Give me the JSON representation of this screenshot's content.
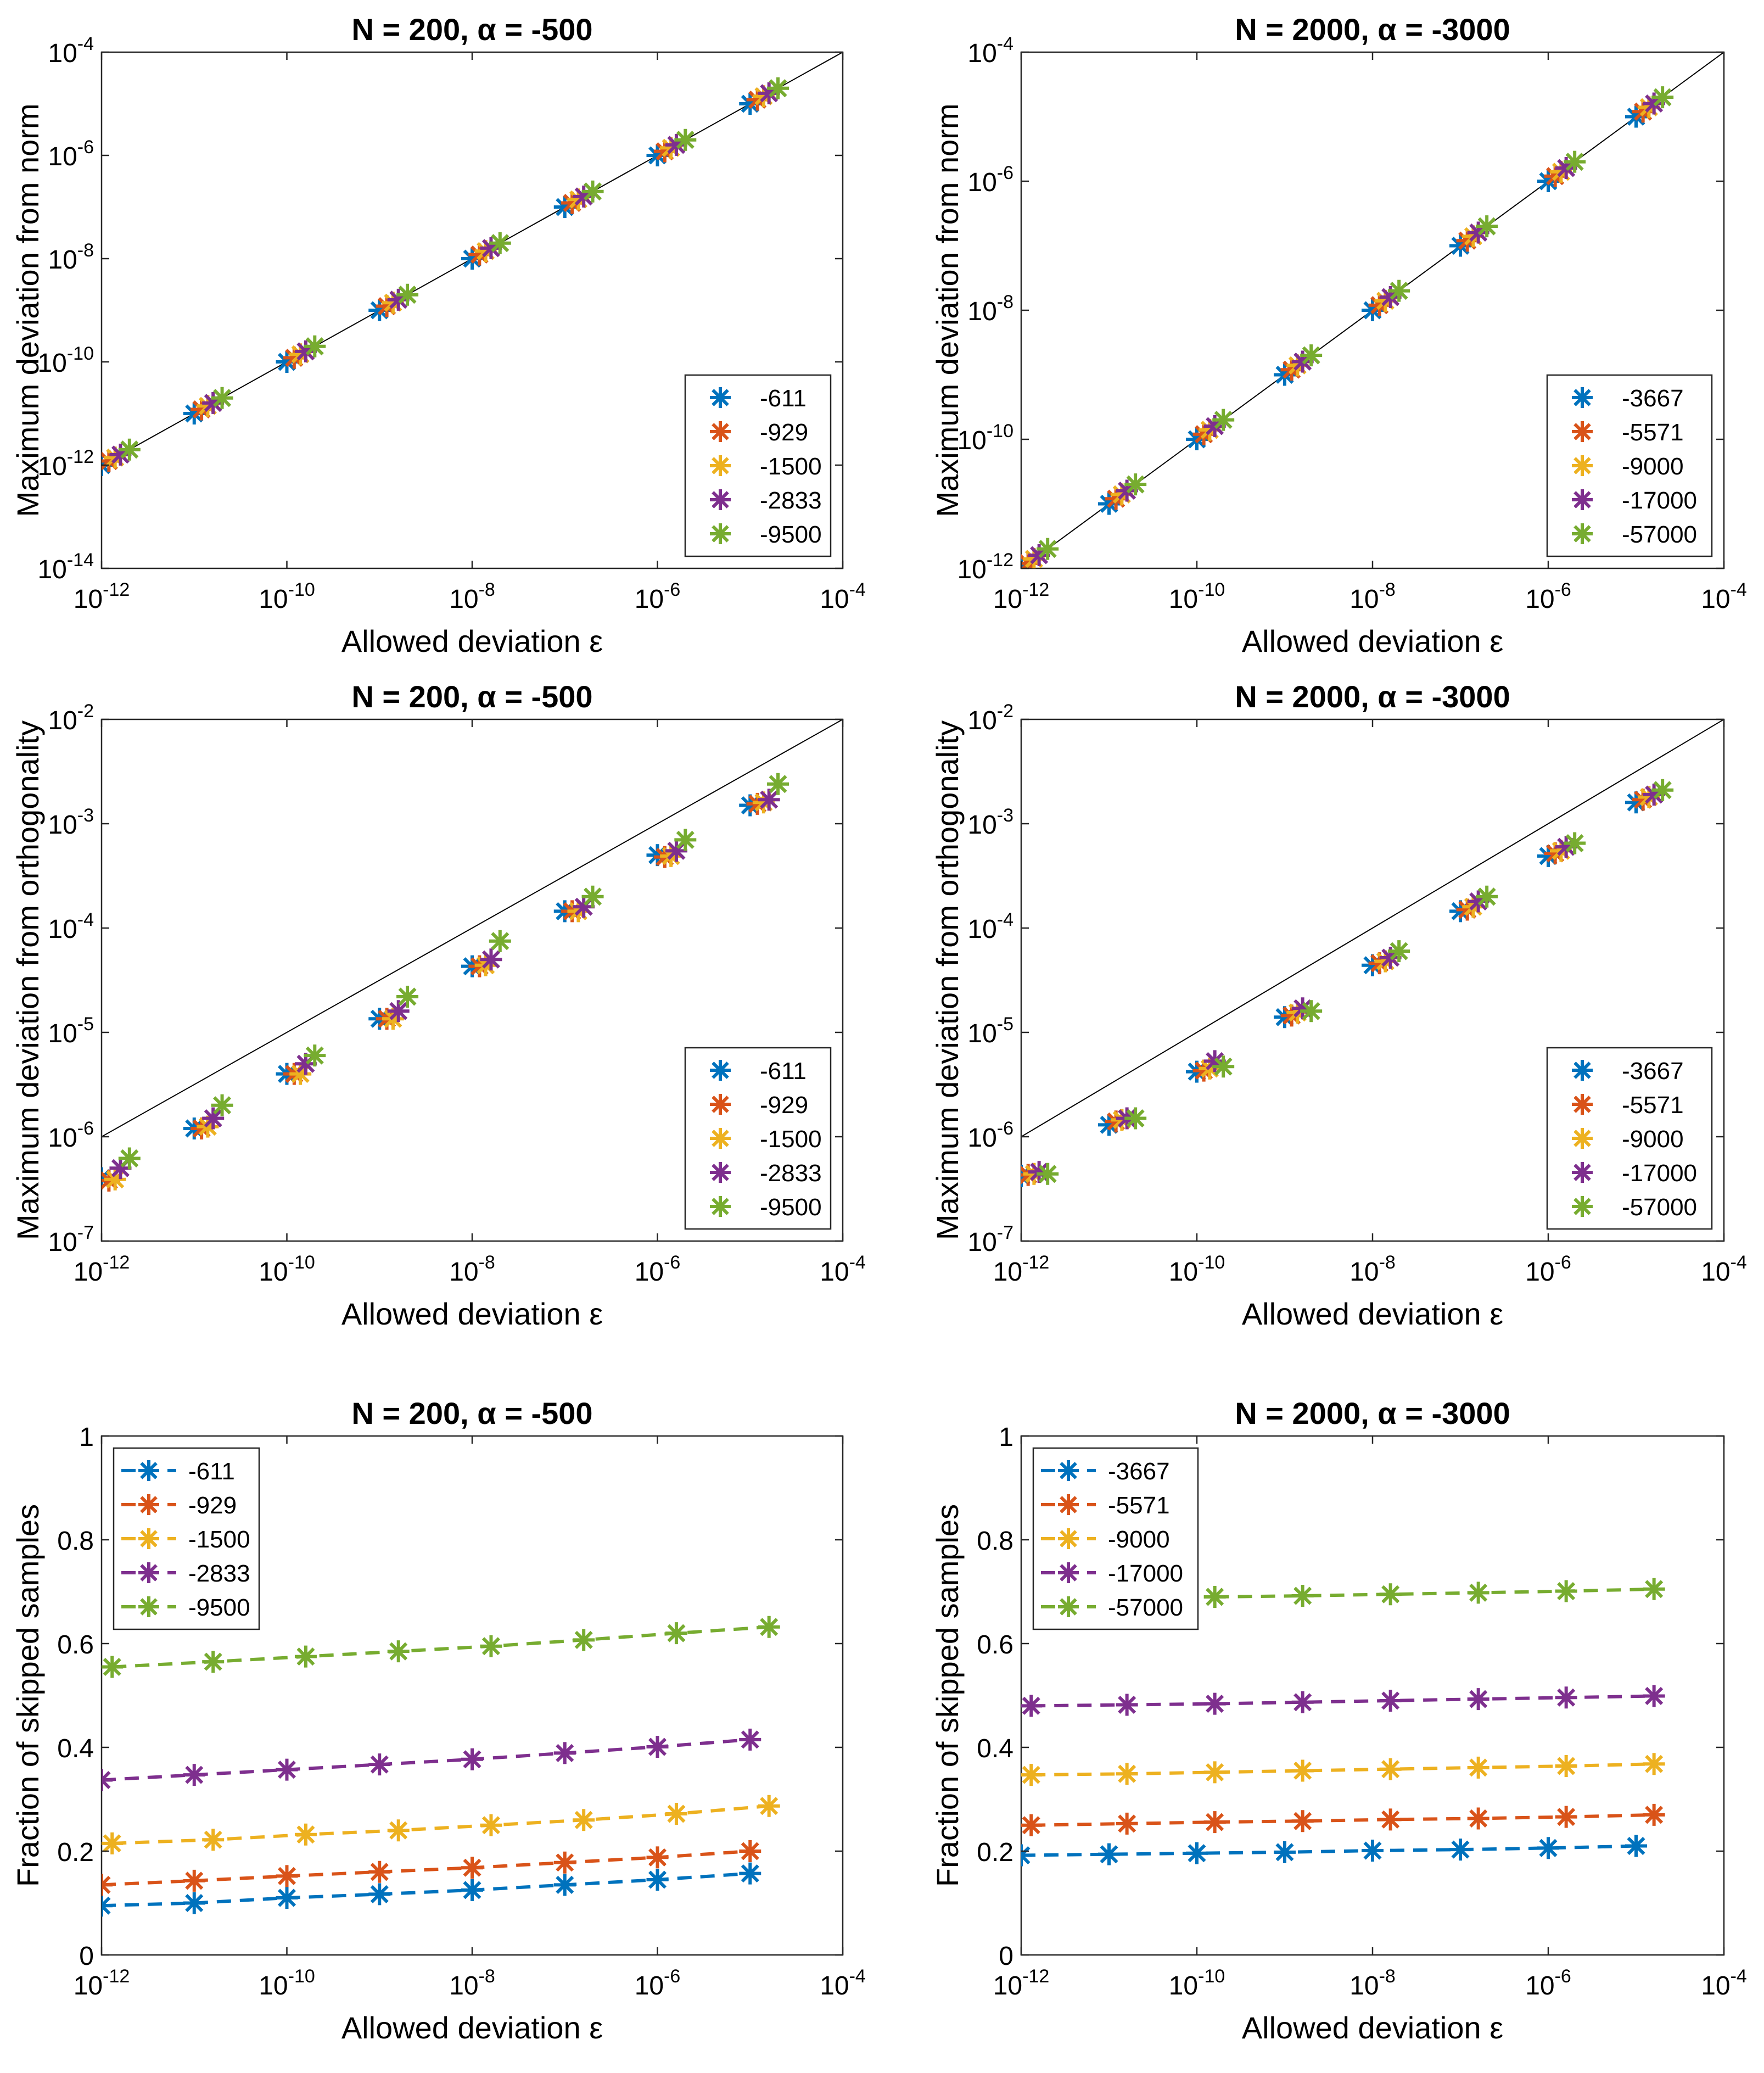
{
  "figure": {
    "colors": [
      "#0072BD",
      "#D95319",
      "#EDB120",
      "#7E2F8E",
      "#77AC30"
    ]
  },
  "chart_data": [
    {
      "id": "p1",
      "type": "scatter",
      "title": "N = 200, α = -500",
      "xlabel": "Allowed deviation ε",
      "ylabel": "Maximum deviation from norm",
      "xscale": "log",
      "yscale": "log",
      "xlim": [
        1e-12,
        0.0001
      ],
      "ylim": [
        1e-14,
        0.0001
      ],
      "xtick_labels": [
        "10-12",
        "10-10",
        "10-8",
        "10-6",
        "10-4"
      ],
      "ytick_labels": [
        "10-14",
        "10-12",
        "10-10",
        "10-8",
        "10-6",
        "10-4"
      ],
      "reference_line": "y = x",
      "legend_loc": "bottom-right",
      "x": [
        1e-12,
        1e-11,
        1e-10,
        1e-09,
        1e-08,
        1e-07,
        1e-06,
        1e-05
      ],
      "series": [
        {
          "name": "-611",
          "values": [
            1e-12,
            1e-11,
            1e-10,
            1e-09,
            1e-08,
            1e-07,
            1e-06,
            1e-05
          ]
        },
        {
          "name": "-929",
          "values": [
            1.2e-12,
            1.2e-11,
            1.2e-10,
            1.2e-09,
            1.2e-08,
            1.2e-07,
            1.2e-06,
            1.2e-05
          ]
        },
        {
          "name": "-1500",
          "values": [
            1.4e-12,
            1.4e-11,
            1.4e-10,
            1.4e-09,
            1.4e-08,
            1.4e-07,
            1.4e-06,
            1.4e-05
          ]
        },
        {
          "name": "-2833",
          "values": [
            1.6e-12,
            1.6e-11,
            1.6e-10,
            1.6e-09,
            1.6e-08,
            1.6e-07,
            1.6e-06,
            1.6e-05
          ]
        },
        {
          "name": "-9500",
          "values": [
            2e-12,
            2e-11,
            2e-10,
            2e-09,
            2e-08,
            2e-07,
            2e-06,
            2e-05
          ]
        }
      ]
    },
    {
      "id": "p2",
      "type": "scatter",
      "title": "N = 2000, α = -3000",
      "xlabel": "Allowed deviation ε",
      "ylabel": "Maximum deviation from norm",
      "xscale": "log",
      "yscale": "log",
      "xlim": [
        1e-12,
        0.0001
      ],
      "ylim": [
        1e-12,
        0.0001
      ],
      "xtick_labels": [
        "10-12",
        "10-10",
        "10-8",
        "10-6",
        "10-4"
      ],
      "ytick_labels": [
        "10-12",
        "10-10",
        "10-8",
        "10-6",
        "10-4"
      ],
      "reference_line": "y = x",
      "legend_loc": "bottom-right",
      "x": [
        1e-12,
        1e-11,
        1e-10,
        1e-09,
        1e-08,
        1e-07,
        1e-06,
        1e-05
      ],
      "series": [
        {
          "name": "-3667",
          "values": [
            1e-12,
            1e-11,
            1e-10,
            1e-09,
            1e-08,
            1e-07,
            1e-06,
            1e-05
          ]
        },
        {
          "name": "-5571",
          "values": [
            1.2e-12,
            1.2e-11,
            1.2e-10,
            1.2e-09,
            1.2e-08,
            1.2e-07,
            1.2e-06,
            1.2e-05
          ]
        },
        {
          "name": "-9000",
          "values": [
            1.4e-12,
            1.4e-11,
            1.4e-10,
            1.4e-09,
            1.4e-08,
            1.4e-07,
            1.4e-06,
            1.4e-05
          ]
        },
        {
          "name": "-17000",
          "values": [
            1.6e-12,
            1.6e-11,
            1.6e-10,
            1.6e-09,
            1.6e-08,
            1.6e-07,
            1.6e-06,
            1.6e-05
          ]
        },
        {
          "name": "-57000",
          "values": [
            2e-12,
            2e-11,
            2e-10,
            2e-09,
            2e-08,
            2e-07,
            2e-06,
            2e-05
          ]
        }
      ]
    },
    {
      "id": "p3",
      "type": "scatter",
      "title": "N = 200, α = -500",
      "xlabel": "Allowed deviation ε",
      "ylabel": "Maximum deviation from orthogonality",
      "xscale": "log",
      "yscale": "log",
      "xlim": [
        1e-12,
        0.0001
      ],
      "ylim": [
        1e-07,
        0.01
      ],
      "xtick_labels": [
        "10-12",
        "10-10",
        "10-8",
        "10-6",
        "10-4"
      ],
      "ytick_labels": [
        "10-7",
        "10-6",
        "10-5",
        "10-4",
        "10-3",
        "10-2"
      ],
      "reference_line": "y = sqrt(x)",
      "legend_loc": "bottom-right",
      "x": [
        1e-12,
        1e-11,
        1e-10,
        1e-09,
        1e-08,
        1e-07,
        1e-06,
        1e-05
      ],
      "series": [
        {
          "name": "-611",
          "values": [
            4e-07,
            1.2e-06,
            4e-06,
            1.35e-05,
            4.3e-05,
            0.000145,
            0.0005,
            0.0015
          ]
        },
        {
          "name": "-929",
          "values": [
            3.8e-07,
            1.2e-06,
            4e-06,
            1.35e-05,
            4.3e-05,
            0.000145,
            0.00048,
            0.00155
          ]
        },
        {
          "name": "-1500",
          "values": [
            3.9e-07,
            1.25e-06,
            4e-06,
            1.35e-05,
            4.4e-05,
            0.000145,
            0.00049,
            0.0016
          ]
        },
        {
          "name": "-2833",
          "values": [
            5e-07,
            1.5e-06,
            5e-06,
            1.6e-05,
            5e-05,
            0.00016,
            0.00055,
            0.0017
          ]
        },
        {
          "name": "-9500",
          "values": [
            6.2e-07,
            2e-06,
            6e-06,
            2.2e-05,
            7.5e-05,
            0.0002,
            0.0007,
            0.0024
          ]
        }
      ]
    },
    {
      "id": "p4",
      "type": "scatter",
      "title": "N = 2000, α = -3000",
      "xlabel": "Allowed deviation ε",
      "ylabel": "Maximum deviation from orthogonality",
      "xscale": "log",
      "yscale": "log",
      "xlim": [
        1e-12,
        0.0001
      ],
      "ylim": [
        1e-07,
        0.01
      ],
      "xtick_labels": [
        "10-12",
        "10-10",
        "10-8",
        "10-6",
        "10-4"
      ],
      "ytick_labels": [
        "10-7",
        "10-6",
        "10-5",
        "10-4",
        "10-3",
        "10-2"
      ],
      "reference_line": "y = sqrt(x)",
      "legend_loc": "bottom-right",
      "x": [
        1e-12,
        1e-11,
        1e-10,
        1e-09,
        1e-08,
        1e-07,
        1e-06,
        1e-05
      ],
      "series": [
        {
          "name": "-3667",
          "values": [
            4.2e-07,
            1.3e-06,
            4.2e-06,
            1.4e-05,
            4.4e-05,
            0.000145,
            0.00049,
            0.0016
          ]
        },
        {
          "name": "-5571",
          "values": [
            4.3e-07,
            1.4e-06,
            4.3e-06,
            1.45e-05,
            4.6e-05,
            0.00015,
            0.00052,
            0.0017
          ]
        },
        {
          "name": "-9000",
          "values": [
            4.4e-07,
            1.45e-06,
            4.5e-06,
            1.55e-05,
            4.8e-05,
            0.00016,
            0.00055,
            0.0018
          ]
        },
        {
          "name": "-17000",
          "values": [
            4.6e-07,
            1.5e-06,
            5.3e-06,
            1.7e-05,
            5.2e-05,
            0.00018,
            0.0006,
            0.0019
          ]
        },
        {
          "name": "-57000",
          "values": [
            4.4e-07,
            1.5e-06,
            4.7e-06,
            1.6e-05,
            6e-05,
            0.0002,
            0.00065,
            0.0021
          ]
        }
      ]
    },
    {
      "id": "p5",
      "type": "line",
      "title": "N = 200, α = -500",
      "xlabel": "Allowed deviation ε",
      "ylabel": "Fraction of skipped samples",
      "xscale": "log",
      "yscale": "linear",
      "xlim": [
        1e-12,
        0.0001
      ],
      "ylim": [
        0,
        1
      ],
      "xtick_labels": [
        "10-12",
        "10-10",
        "10-8",
        "10-6",
        "10-4"
      ],
      "ytick_labels": [
        "0",
        "0.2",
        "0.4",
        "0.6",
        "0.8",
        "1"
      ],
      "legend_loc": "top-left",
      "series": [
        {
          "name": "-611",
          "x": [
            1e-12,
            1e-11,
            1e-10,
            1e-09,
            1e-08,
            1e-07,
            1e-06,
            1e-05
          ],
          "values": [
            0.095,
            0.1,
            0.11,
            0.117,
            0.125,
            0.135,
            0.145,
            0.157
          ]
        },
        {
          "name": "-929",
          "x": [
            1e-12,
            1e-11,
            1e-10,
            1e-09,
            1e-08,
            1e-07,
            1e-06,
            1e-05
          ],
          "values": [
            0.135,
            0.143,
            0.152,
            0.16,
            0.168,
            0.178,
            0.188,
            0.2
          ]
        },
        {
          "name": "-1500",
          "x": [
            1.3e-12,
            1.6e-11,
            1.6e-10,
            1.6e-09,
            1.6e-08,
            1.6e-07,
            1.6e-06,
            1.6e-05
          ],
          "values": [
            0.215,
            0.222,
            0.232,
            0.24,
            0.25,
            0.26,
            0.272,
            0.287
          ]
        },
        {
          "name": "-2833",
          "x": [
            1e-12,
            1e-11,
            1e-10,
            1e-09,
            1e-08,
            1e-07,
            1e-06,
            1e-05
          ],
          "values": [
            0.337,
            0.347,
            0.357,
            0.367,
            0.377,
            0.389,
            0.401,
            0.415
          ]
        },
        {
          "name": "-9500",
          "x": [
            1.3e-12,
            1.6e-11,
            1.6e-10,
            1.6e-09,
            1.6e-08,
            1.6e-07,
            1.6e-06,
            1.6e-05
          ],
          "values": [
            0.555,
            0.565,
            0.575,
            0.585,
            0.595,
            0.607,
            0.62,
            0.632
          ]
        }
      ]
    },
    {
      "id": "p6",
      "type": "line",
      "title": "N = 2000, α = -3000",
      "xlabel": "Allowed deviation ε",
      "ylabel": "Fraction of skipped samples",
      "xscale": "log",
      "yscale": "linear",
      "xlim": [
        1e-12,
        0.0001
      ],
      "ylim": [
        0,
        1
      ],
      "xtick_labels": [
        "10-12",
        "10-10",
        "10-8",
        "10-6",
        "10-4"
      ],
      "ytick_labels": [
        "0",
        "0.2",
        "0.4",
        "0.6",
        "0.8",
        "1"
      ],
      "legend_loc": "top-left",
      "series": [
        {
          "name": "-3667",
          "x": [
            1e-12,
            1e-11,
            1e-10,
            1e-09,
            1e-08,
            1e-07,
            1e-06,
            1e-05
          ],
          "values": [
            0.192,
            0.194,
            0.196,
            0.198,
            0.201,
            0.203,
            0.206,
            0.21
          ]
        },
        {
          "name": "-5571",
          "x": [
            1.3e-12,
            1.6e-11,
            1.6e-10,
            1.6e-09,
            1.6e-08,
            1.6e-07,
            1.6e-06,
            1.6e-05
          ],
          "values": [
            0.25,
            0.253,
            0.256,
            0.258,
            0.261,
            0.263,
            0.266,
            0.27
          ]
        },
        {
          "name": "-9000",
          "x": [
            1.3e-12,
            1.6e-11,
            1.6e-10,
            1.6e-09,
            1.6e-08,
            1.6e-07,
            1.6e-06,
            1.6e-05
          ],
          "values": [
            0.347,
            0.349,
            0.352,
            0.355,
            0.358,
            0.361,
            0.364,
            0.368
          ]
        },
        {
          "name": "-17000",
          "x": [
            1.3e-12,
            1.6e-11,
            1.6e-10,
            1.6e-09,
            1.6e-08,
            1.6e-07,
            1.6e-06,
            1.6e-05
          ],
          "values": [
            0.48,
            0.482,
            0.484,
            0.487,
            0.49,
            0.493,
            0.496,
            0.499
          ]
        },
        {
          "name": "-57000",
          "x": [
            1.6e-10,
            1.6e-09,
            1.6e-08,
            1.6e-07,
            1.6e-06,
            1.6e-05
          ],
          "values": [
            0.69,
            0.692,
            0.695,
            0.698,
            0.701,
            0.705
          ]
        }
      ]
    }
  ]
}
